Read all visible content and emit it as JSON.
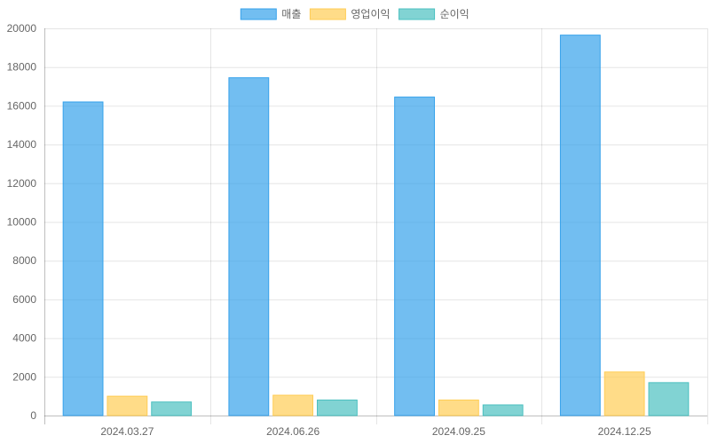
{
  "chart_data": {
    "type": "bar",
    "categories": [
      "2024.03.27",
      "2024.06.26",
      "2024.09.25",
      "2024.12.25"
    ],
    "series": [
      {
        "name": "매출",
        "values": [
          16200,
          17450,
          16450,
          19650
        ],
        "color": "#36A2EB"
      },
      {
        "name": "영업이익",
        "values": [
          1000,
          1050,
          800,
          2250
        ],
        "color": "#FFCD56"
      },
      {
        "name": "순이익",
        "values": [
          700,
          800,
          550,
          1700
        ],
        "color": "#4BC0C0"
      }
    ],
    "ylim": [
      0,
      20000
    ],
    "yticks": [
      0,
      2000,
      4000,
      6000,
      8000,
      10000,
      12000,
      14000,
      16000,
      18000,
      20000
    ],
    "grid": true,
    "legend_position": "top-center",
    "title": "",
    "xlabel": "",
    "ylabel": ""
  }
}
